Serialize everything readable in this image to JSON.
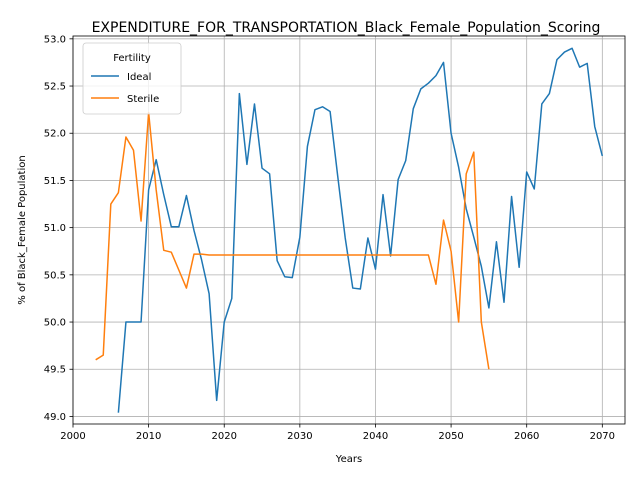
{
  "chart_data": {
    "type": "line",
    "title": "EXPENDITURE_FOR_TRANSPORTATION_Black_Female_Population_Scoring",
    "xlabel": "Years",
    "ylabel": "% of Black_Female Population",
    "xlim": [
      2000,
      2073
    ],
    "ylim": [
      48.92,
      53.03
    ],
    "xticks": [
      2000,
      2010,
      2020,
      2030,
      2040,
      2050,
      2060,
      2070
    ],
    "yticks": [
      49.0,
      49.5,
      50.0,
      50.5,
      51.0,
      51.5,
      52.0,
      52.5,
      53.0
    ],
    "grid": true,
    "legend": {
      "title": "Fertility",
      "placement": "top-left"
    },
    "series": [
      {
        "name": "Ideal",
        "color": "#1f77b4",
        "x": [
          2006,
          2007,
          2008,
          2009,
          2010,
          2011,
          2012,
          2013,
          2014,
          2015,
          2016,
          2017,
          2018,
          2019,
          2020,
          2021,
          2022,
          2023,
          2024,
          2025,
          2026,
          2027,
          2028,
          2029,
          2030,
          2031,
          2032,
          2033,
          2034,
          2035,
          2036,
          2037,
          2038,
          2039,
          2040,
          2041,
          2042,
          2043,
          2044,
          2045,
          2046,
          2047,
          2048,
          2049,
          2050,
          2051,
          2052,
          2053,
          2054,
          2055,
          2056,
          2057,
          2058,
          2059,
          2060,
          2061,
          2062,
          2063,
          2064,
          2065,
          2066,
          2067,
          2068,
          2069,
          2070
        ],
        "values": [
          49.04,
          50.0,
          50.0,
          50.0,
          51.4,
          51.72,
          51.35,
          51.01,
          51.01,
          51.34,
          50.97,
          50.66,
          50.3,
          49.17,
          50.0,
          50.25,
          52.42,
          51.67,
          52.31,
          51.63,
          51.57,
          50.65,
          50.48,
          50.47,
          50.9,
          51.86,
          52.25,
          52.28,
          52.23,
          51.55,
          50.89,
          50.36,
          50.35,
          50.89,
          50.56,
          51.35,
          50.7,
          51.51,
          51.71,
          52.26,
          52.47,
          52.53,
          52.61,
          52.75,
          52.0,
          51.64,
          51.2,
          50.9,
          50.59,
          50.15,
          50.85,
          50.21,
          51.33,
          50.58,
          51.59,
          51.41,
          52.31,
          52.42,
          52.78,
          52.86,
          52.9,
          52.7,
          52.74,
          52.07,
          51.76
        ]
      },
      {
        "name": "Sterile",
        "color": "#ff7f0e",
        "x": [
          2003,
          2004,
          2005,
          2006,
          2007,
          2008,
          2009,
          2010,
          2011,
          2012,
          2013,
          2014,
          2015,
          2016,
          2017,
          2018,
          2019,
          2020,
          2021,
          2022,
          2023,
          2024,
          2025,
          2026,
          2027,
          2028,
          2029,
          2030,
          2031,
          2032,
          2033,
          2034,
          2035,
          2036,
          2037,
          2038,
          2039,
          2040,
          2041,
          2042,
          2043,
          2044,
          2045,
          2046,
          2047,
          2048,
          2049,
          2050,
          2051,
          2052,
          2053,
          2054,
          2055
        ],
        "values": [
          49.6,
          49.65,
          51.25,
          51.37,
          51.96,
          51.82,
          51.07,
          52.22,
          51.4,
          50.76,
          50.74,
          50.55,
          50.36,
          50.72,
          50.72,
          50.71,
          50.71,
          50.71,
          50.71,
          50.71,
          50.71,
          50.71,
          50.71,
          50.71,
          50.71,
          50.71,
          50.71,
          50.71,
          50.71,
          50.71,
          50.71,
          50.71,
          50.71,
          50.71,
          50.71,
          50.71,
          50.71,
          50.71,
          50.71,
          50.71,
          50.71,
          50.71,
          50.71,
          50.71,
          50.71,
          50.4,
          51.08,
          50.75,
          50.0,
          51.57,
          51.8,
          50.0,
          49.5
        ]
      }
    ]
  }
}
